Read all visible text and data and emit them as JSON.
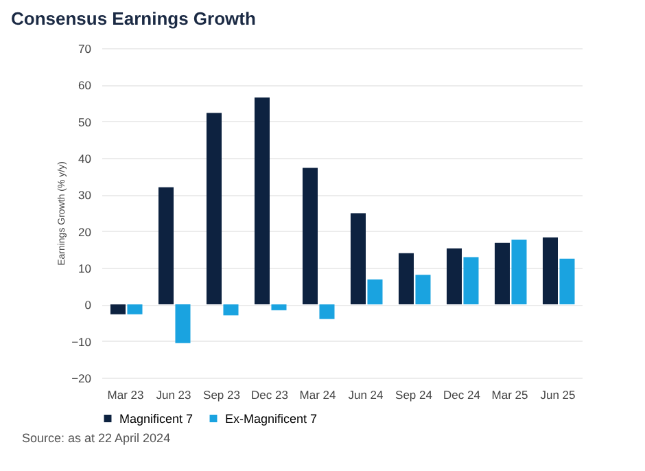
{
  "chart_data": {
    "type": "bar",
    "title": "Consensus Earnings Growth",
    "ylabel": "Earnings Growth (% y/y)",
    "categories": [
      "Mar 23",
      "Jun 23",
      "Sep 23",
      "Dec 23",
      "Mar 24",
      "Jun 24",
      "Sep 24",
      "Dec 24",
      "Mar 25",
      "Jun 25"
    ],
    "series": [
      {
        "name": "Magnificent 7",
        "color": "#0d2240",
        "values": [
          -2.7,
          32,
          52.3,
          56.5,
          37.3,
          24.9,
          14,
          15.3,
          16.8,
          18.3
        ]
      },
      {
        "name": "Ex-Magnificent 7",
        "color": "#1aa3e0",
        "values": [
          -2.7,
          -10.6,
          -3,
          -1.6,
          -4,
          6.8,
          8.1,
          12.9,
          17.7,
          12.5
        ]
      }
    ],
    "ylim": [
      -20,
      70
    ],
    "yticks": [
      -20,
      -10,
      0,
      10,
      20,
      30,
      40,
      50,
      60,
      70
    ],
    "grid": "y",
    "legend": "bottom",
    "annotations": [
      "Source: as at 22 April 2024"
    ]
  }
}
